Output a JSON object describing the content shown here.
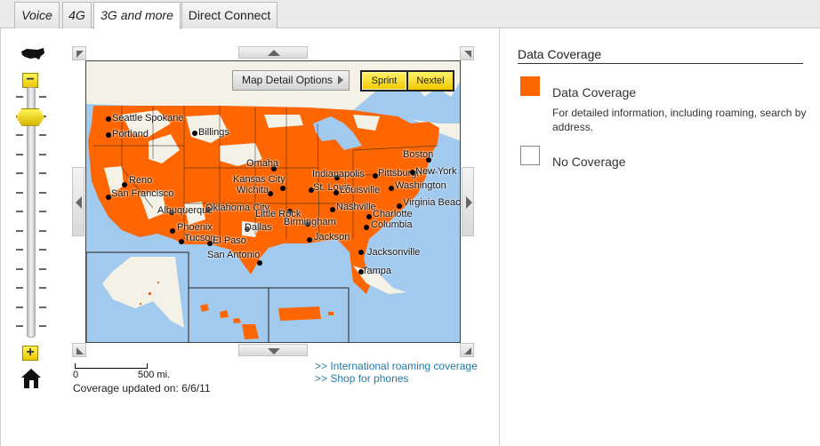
{
  "tabs": [
    {
      "label": "Voice",
      "active": false
    },
    {
      "label": "4G",
      "active": false
    },
    {
      "label": "3G and more",
      "active": true
    },
    {
      "label": "Direct Connect",
      "active": false
    }
  ],
  "zoom": {
    "minus": "−",
    "plus": "+",
    "level_fraction": 0.92
  },
  "map": {
    "detail_button": "Map Detail Options",
    "networks": [
      "Sprint",
      "Nextel"
    ],
    "selected_network": "Sprint",
    "coverage_color": "#ff6600",
    "water_color": "#a2c9ee",
    "cities": [
      "Seattle",
      "Spokane",
      "Portland",
      "Billings",
      "Boston",
      "Omaha",
      "Indianapolis",
      "Pittsburgh",
      "New York",
      "Reno",
      "Kansas City",
      "St. Louis",
      "Louisville",
      "Washington",
      "San Francisco",
      "Wichita",
      "Virginia Beach",
      "Albuquerque",
      "Oklahoma City",
      "Little Rock",
      "Nashville",
      "Charlotte",
      "Birmingham",
      "Columbia",
      "Phoenix",
      "Dallas",
      "Tucson",
      "El Paso",
      "Jackson",
      "San Antonio",
      "Jacksonville",
      "Tampa"
    ]
  },
  "scale": {
    "zero": "0",
    "distance": "500 mi."
  },
  "updated": "Coverage updated on: 6/6/11",
  "links": {
    "roaming": ">> International roaming coverage",
    "shop": ">> Shop for phones"
  },
  "legend": {
    "title": "Data Coverage",
    "items": [
      {
        "label": "Data Coverage",
        "color": "#ff6600",
        "desc": "For detailed information, including roaming, search by address."
      },
      {
        "label": "No Coverage",
        "color": "#ffffff"
      }
    ]
  }
}
